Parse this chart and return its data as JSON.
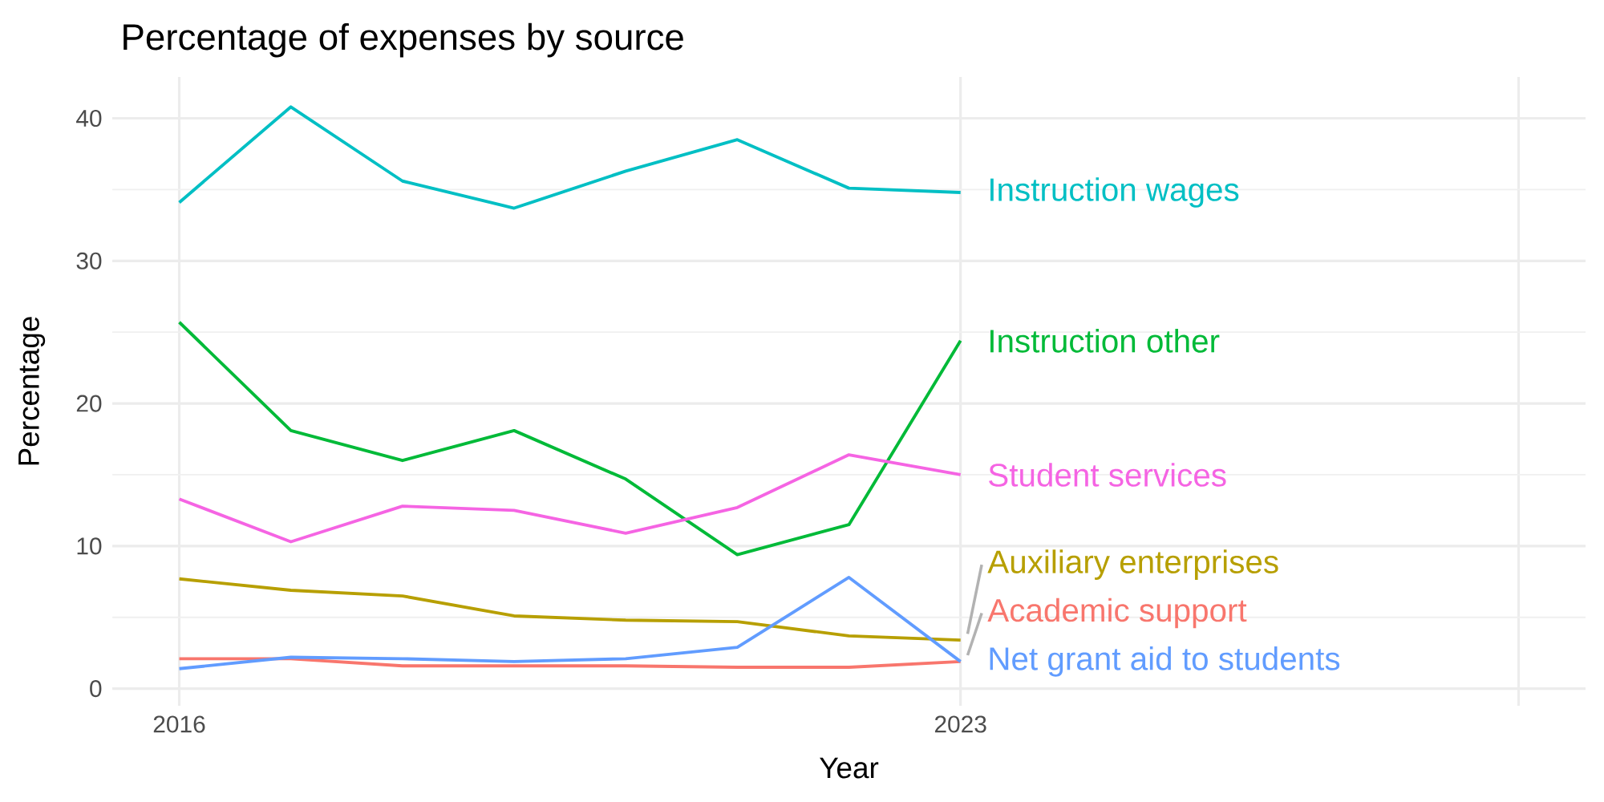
{
  "chart_data": {
    "type": "line",
    "title": "Percentage of expenses by source",
    "xlabel": "Year",
    "ylabel": "Percentage",
    "x": [
      2016,
      2017,
      2018,
      2019,
      2020,
      2021,
      2022,
      2023
    ],
    "series": [
      {
        "name": "Academic support",
        "color": "#f8766d",
        "values": [
          2.1,
          2.1,
          1.6,
          1.6,
          1.6,
          1.5,
          1.5,
          1.9
        ]
      },
      {
        "name": "Auxiliary enterprises",
        "color": "#b79f00",
        "values": [
          7.7,
          6.9,
          6.5,
          5.1,
          4.8,
          4.7,
          3.7,
          3.4
        ]
      },
      {
        "name": "Instruction other",
        "color": "#00ba38",
        "values": [
          25.7,
          18.1,
          16.0,
          18.1,
          14.7,
          9.4,
          11.5,
          24.4
        ]
      },
      {
        "name": "Instruction wages",
        "color": "#00bfc4",
        "values": [
          34.1,
          40.8,
          35.6,
          33.7,
          36.3,
          38.5,
          35.1,
          34.8
        ]
      },
      {
        "name": "Net grant aid to students",
        "color": "#619cff",
        "values": [
          1.4,
          2.2,
          2.1,
          1.9,
          2.1,
          2.9,
          7.8,
          1.9
        ]
      },
      {
        "name": "Student services",
        "color": "#f564e3",
        "values": [
          13.3,
          10.3,
          12.8,
          12.5,
          10.9,
          12.7,
          16.4,
          15.0
        ]
      }
    ],
    "xlim": [
      2015.4,
      2028.6
    ],
    "xticks": [
      2016,
      2023,
      {
        "value": 2028,
        "label": null
      }
    ],
    "ylim": [
      -1.2,
      42.9
    ],
    "yticks": [
      0,
      10,
      20,
      30,
      40
    ],
    "grid": true,
    "marker": "none",
    "line_style": "solid"
  }
}
